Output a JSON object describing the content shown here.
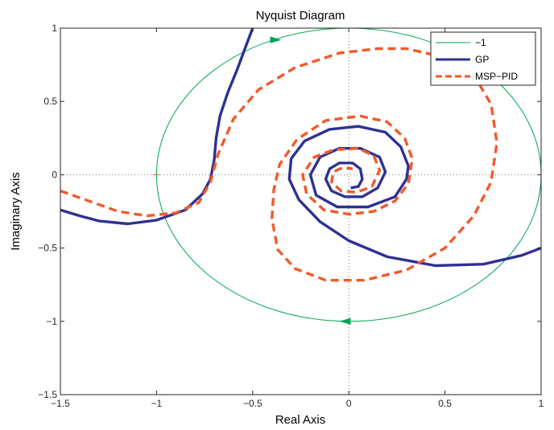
{
  "chart_data": {
    "type": "line",
    "title": "Nyquist Diagram",
    "xlabel": "Real Axis",
    "ylabel": "Imaginary Axis",
    "xlim": [
      -1.5,
      1
    ],
    "ylim": [
      -1.5,
      1
    ],
    "xticks": [
      -1.5,
      -1,
      -0.5,
      0,
      0.5,
      1
    ],
    "yticks": [
      -1.5,
      -1,
      -0.5,
      0,
      0.5,
      1
    ],
    "xtick_labels": [
      "−1.5",
      "−1",
      "−0.5",
      "0",
      "0.5",
      "1"
    ],
    "ytick_labels": [
      "−1.5",
      "−1",
      "−0.5",
      "0",
      "0.5",
      "1"
    ],
    "crosshair": "dotted lines at x=0 and y=0",
    "legend_placement": "top-right",
    "critical_point": [
      -1,
      0
    ],
    "series": [
      {
        "name": "−1",
        "color": "#00a651",
        "style": "thin solid with arrowheads",
        "points": [
          [
            -1,
            0
          ],
          [
            -0.98,
            0.16
          ],
          [
            -0.93,
            0.31
          ],
          [
            -0.84,
            0.48
          ],
          [
            -0.7,
            0.66
          ],
          [
            -0.52,
            0.83
          ],
          [
            -0.33,
            0.93
          ],
          [
            -0.15,
            0.98
          ],
          [
            0,
            1
          ],
          [
            0.2,
            0.98
          ],
          [
            0.4,
            0.92
          ],
          [
            0.6,
            0.8
          ],
          [
            0.78,
            0.6
          ],
          [
            0.92,
            0.38
          ],
          [
            0.98,
            0.15
          ],
          [
            1,
            0
          ],
          [
            0.98,
            -0.17
          ],
          [
            0.93,
            -0.36
          ],
          [
            0.85,
            -0.5
          ],
          [
            0.73,
            -0.67
          ],
          [
            0.57,
            -0.81
          ],
          [
            0.35,
            -0.93
          ],
          [
            0.15,
            -0.99
          ],
          [
            0,
            -1
          ],
          [
            -0.2,
            -0.98
          ],
          [
            -0.4,
            -0.92
          ],
          [
            -0.58,
            -0.82
          ],
          [
            -0.74,
            -0.67
          ],
          [
            -0.87,
            -0.5
          ],
          [
            -0.94,
            -0.34
          ],
          [
            -0.99,
            -0.15
          ],
          [
            -1,
            0
          ]
        ],
        "arrows": [
          {
            "at": [
              -0.38,
              0.92
            ],
            "dir": "right"
          },
          {
            "at": [
              -0.02,
              -1.0
            ],
            "dir": "left"
          }
        ]
      },
      {
        "name": "GP",
        "color": "#2e3192",
        "style": "thick solid",
        "points": [
          [
            -1.5,
            -0.24
          ],
          [
            -1.4,
            -0.28
          ],
          [
            -1.3,
            -0.315
          ],
          [
            -1.15,
            -0.335
          ],
          [
            -1.0,
            -0.31
          ],
          [
            -0.85,
            -0.24
          ],
          [
            -0.76,
            -0.13
          ],
          [
            -0.72,
            -0.03
          ],
          [
            -0.7,
            0.1
          ],
          [
            -0.69,
            0.25
          ],
          [
            -0.67,
            0.4
          ],
          [
            -0.63,
            0.56
          ],
          [
            -0.58,
            0.72
          ],
          [
            -0.54,
            0.86
          ],
          [
            -0.5,
            1.0
          ],
          [
            0.01,
            -0.09
          ],
          [
            0.05,
            -0.08
          ],
          [
            0.07,
            -0.03
          ],
          [
            0.06,
            0.04
          ],
          [
            0.02,
            0.08
          ],
          [
            -0.05,
            0.08
          ],
          [
            -0.1,
            0.04
          ],
          [
            -0.12,
            -0.03
          ],
          [
            -0.09,
            -0.11
          ],
          [
            -0.02,
            -0.15
          ],
          [
            0.07,
            -0.15
          ],
          [
            0.15,
            -0.09
          ],
          [
            0.19,
            0.02
          ],
          [
            0.16,
            0.12
          ],
          [
            0.06,
            0.18
          ],
          [
            -0.05,
            0.18
          ],
          [
            -0.15,
            0.12
          ],
          [
            -0.2,
            0.0
          ],
          [
            -0.17,
            -0.14
          ],
          [
            -0.06,
            -0.22
          ],
          [
            0.1,
            -0.22
          ],
          [
            0.24,
            -0.15
          ],
          [
            0.3,
            -0.03
          ],
          [
            0.31,
            0.06
          ],
          [
            0.27,
            0.19
          ],
          [
            0.19,
            0.29
          ],
          [
            0.05,
            0.33
          ],
          [
            -0.1,
            0.31
          ],
          [
            -0.23,
            0.23
          ],
          [
            -0.3,
            0.11
          ],
          [
            -0.31,
            -0.03
          ],
          [
            -0.26,
            -0.17
          ],
          [
            -0.15,
            -0.32
          ],
          [
            0.0,
            -0.45
          ],
          [
            0.2,
            -0.56
          ],
          [
            0.45,
            -0.62
          ],
          [
            0.7,
            -0.61
          ],
          [
            0.9,
            -0.55
          ],
          [
            1.0,
            -0.5
          ]
        ]
      },
      {
        "name": "MSP−PID",
        "color": "#f15a29",
        "style": "thick dashed",
        "points": [
          [
            -1.5,
            -0.11
          ],
          [
            -1.35,
            -0.18
          ],
          [
            -1.2,
            -0.25
          ],
          [
            -1.05,
            -0.28
          ],
          [
            -0.9,
            -0.26
          ],
          [
            -0.78,
            -0.19
          ],
          [
            -0.72,
            -0.05
          ],
          [
            -0.68,
            0.14
          ],
          [
            -0.6,
            0.38
          ],
          [
            -0.47,
            0.58
          ],
          [
            -0.28,
            0.73
          ],
          [
            -0.05,
            0.83
          ],
          [
            0.15,
            0.86
          ],
          [
            0.3,
            0.86
          ],
          [
            0.5,
            0.8
          ],
          [
            0.65,
            0.68
          ],
          [
            0.74,
            0.48
          ],
          [
            0.77,
            0.22
          ],
          [
            0.74,
            -0.05
          ],
          [
            0.65,
            -0.28
          ],
          [
            0.5,
            -0.5
          ],
          [
            0.3,
            -0.65
          ],
          [
            0.08,
            -0.72
          ],
          [
            -0.12,
            -0.72
          ],
          [
            -0.28,
            -0.64
          ],
          [
            -0.37,
            -0.51
          ],
          [
            -0.4,
            -0.3
          ],
          [
            -0.39,
            -0.1
          ],
          [
            -0.36,
            0.07
          ],
          [
            -0.27,
            0.24
          ],
          [
            -0.12,
            0.37
          ],
          [
            0.06,
            0.4
          ],
          [
            0.2,
            0.36
          ],
          [
            0.29,
            0.25
          ],
          [
            0.33,
            0.11
          ],
          [
            0.31,
            -0.06
          ],
          [
            0.24,
            -0.18
          ],
          [
            0.13,
            -0.25
          ],
          [
            0.0,
            -0.27
          ],
          [
            -0.13,
            -0.24
          ],
          [
            -0.22,
            -0.13
          ],
          [
            -0.24,
            0.0
          ],
          [
            -0.18,
            0.12
          ],
          [
            -0.08,
            0.17
          ],
          [
            0.05,
            0.18
          ],
          [
            0.13,
            0.13
          ],
          [
            0.16,
            0.03
          ],
          [
            0.12,
            -0.08
          ],
          [
            0.04,
            -0.12
          ],
          [
            -0.04,
            -0.11
          ],
          [
            -0.09,
            -0.05
          ],
          [
            -0.08,
            0.02
          ],
          [
            -0.03,
            0.05
          ],
          [
            0.02,
            0.04
          ]
        ]
      }
    ]
  }
}
